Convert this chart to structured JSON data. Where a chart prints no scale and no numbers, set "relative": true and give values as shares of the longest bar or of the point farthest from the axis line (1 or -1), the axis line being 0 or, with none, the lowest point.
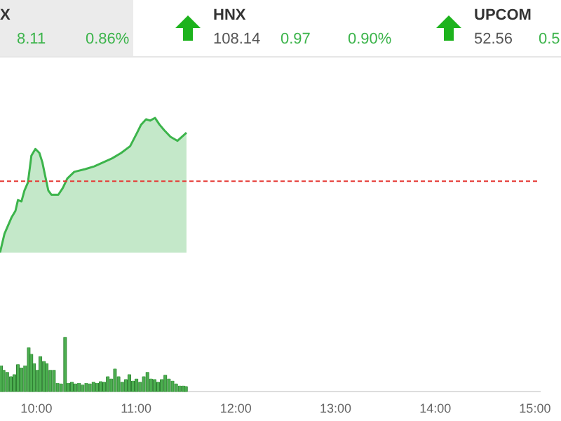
{
  "chart_data": [
    {
      "type": "other",
      "annotations": [
        "X",
        "HNX",
        "UPCOM",
        "8.11",
        "0.86%",
        "108.14",
        "0.97",
        "0.90%",
        "52.56",
        "0.5"
      ]
    },
    {
      "type": "area",
      "relative": true,
      "tick_labels": false,
      "xlim": [
        9.635,
        15.05
      ],
      "x": [
        9.635,
        9.68,
        9.75,
        9.79,
        9.815,
        9.85,
        9.88,
        9.915,
        9.95,
        9.99,
        10.03,
        10.06,
        10.085,
        10.12,
        10.15,
        10.22,
        10.265,
        10.31,
        10.38,
        10.49,
        10.58,
        10.67,
        10.76,
        10.85,
        10.94,
        11.01,
        11.05,
        11.1,
        11.14,
        11.19,
        11.235,
        11.28,
        11.345,
        11.415,
        11.46,
        11.505
      ],
      "series": [
        {
          "color": "#3cb44b",
          "values": [
            0,
            0.14,
            0.26,
            0.31,
            0.39,
            0.38,
            0.46,
            0.52,
            0.72,
            0.77,
            0.74,
            0.67,
            0.58,
            0.46,
            0.43,
            0.43,
            0.48,
            0.55,
            0.6,
            0.62,
            0.64,
            0.67,
            0.7,
            0.74,
            0.79,
            0.89,
            0.95,
            0.99,
            0.98,
            1,
            0.95,
            0.91,
            0.86,
            0.83,
            0.86,
            0.89
          ]
        }
      ],
      "ref_lines": [
        {
          "axis": "y",
          "value": 0.53,
          "color": "#e53935",
          "line_style": "dashed"
        }
      ]
    },
    {
      "type": "bar",
      "relative": true,
      "tick_labels": "x",
      "xlim": [
        9.635,
        15.05
      ],
      "xticks": [
        {
          "value": 10,
          "label": "10:00"
        },
        {
          "value": 11,
          "label": "11:00"
        },
        {
          "value": 12,
          "label": "12:00"
        },
        {
          "value": 13,
          "label": "13:00"
        },
        {
          "value": 14,
          "label": "14:00"
        },
        {
          "value": 15,
          "label": "15:00"
        }
      ],
      "x": [
        9.645,
        9.671,
        9.707,
        9.743,
        9.779,
        9.815,
        9.851,
        9.887,
        9.923,
        9.95,
        9.977,
        10.013,
        10.04,
        10.076,
        10.103,
        10.14,
        10.176,
        10.212,
        10.248,
        10.288,
        10.32,
        10.356,
        10.392,
        10.428,
        10.464,
        10.5,
        10.536,
        10.572,
        10.608,
        10.644,
        10.68,
        10.716,
        10.752,
        10.788,
        10.824,
        10.86,
        10.896,
        10.932,
        10.968,
        11.004,
        11.04,
        11.077,
        11.113,
        11.149,
        11.185,
        11.221,
        11.257,
        11.293,
        11.329,
        11.365,
        11.401,
        11.437,
        11.473,
        11.5
      ],
      "values": [
        0.48,
        0.4,
        0.36,
        0.28,
        0.32,
        0.5,
        0.44,
        0.48,
        0.81,
        0.69,
        0.52,
        0.4,
        0.65,
        0.56,
        0.52,
        0.4,
        0.4,
        0.16,
        0.15,
        1,
        0.16,
        0.18,
        0.15,
        0.16,
        0.13,
        0.16,
        0.15,
        0.18,
        0.16,
        0.19,
        0.18,
        0.28,
        0.24,
        0.42,
        0.28,
        0.18,
        0.23,
        0.32,
        0.2,
        0.24,
        0.18,
        0.28,
        0.36,
        0.24,
        0.23,
        0.18,
        0.23,
        0.31,
        0.24,
        0.2,
        0.15,
        0.11,
        0.11,
        0.1
      ],
      "color": "#4caf50"
    }
  ]
}
